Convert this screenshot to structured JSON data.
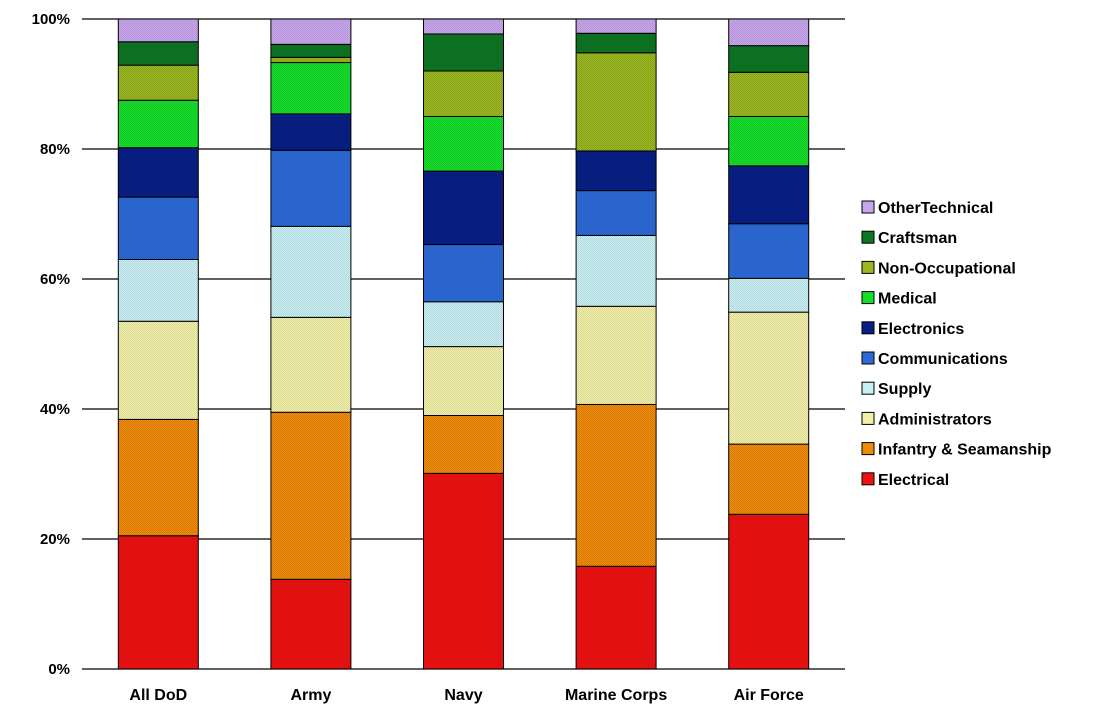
{
  "chart_data": {
    "type": "bar",
    "stacked": true,
    "percent_stacked": true,
    "categories": [
      "All DoD",
      "Army",
      "Navy",
      "Marine Corps",
      "Air Force"
    ],
    "ylim": [
      0,
      100
    ],
    "yticks": [
      "0%",
      "20%",
      "40%",
      "60%",
      "80%",
      "100%"
    ],
    "grid": true,
    "legend_position": "right",
    "series": [
      {
        "name": "Electrical",
        "color": "#ee1111",
        "values": [
          20.5,
          13.8,
          30.1,
          15.8,
          23.8
        ]
      },
      {
        "name": "Infantry & Seamanship",
        "color": "#f08a0a",
        "values": [
          17.9,
          25.7,
          8.9,
          24.9,
          10.8
        ]
      },
      {
        "name": "Administrators",
        "color": "#f2f0a8",
        "values": [
          15.1,
          14.6,
          10.6,
          15.1,
          20.3
        ]
      },
      {
        "name": "Supply",
        "color": "#c8f0f4",
        "values": [
          9.5,
          14.0,
          6.9,
          10.9,
          5.2
        ]
      },
      {
        "name": "Communications",
        "color": "#2d6ad8",
        "values": [
          9.6,
          11.7,
          8.8,
          6.9,
          8.4
        ]
      },
      {
        "name": "Electronics",
        "color": "#081f86",
        "values": [
          7.6,
          5.6,
          11.3,
          6.1,
          8.9
        ]
      },
      {
        "name": "Medical",
        "color": "#16dc2a",
        "values": [
          7.3,
          7.9,
          8.4,
          0.0,
          7.6
        ]
      },
      {
        "name": "Non-Occupational",
        "color": "#9ab620",
        "values": [
          5.4,
          0.8,
          7.0,
          15.1,
          6.8
        ]
      },
      {
        "name": "Craftsman",
        "color": "#0c7622",
        "values": [
          3.6,
          2.0,
          5.7,
          3.0,
          4.1
        ]
      },
      {
        "name": "OtherTechnical",
        "color": "#c8a6ee",
        "values": [
          3.5,
          3.9,
          2.3,
          2.2,
          4.1
        ]
      }
    ],
    "legend_order": [
      "OtherTechnical",
      "Craftsman",
      "Non-Occupational",
      "Medical",
      "Electronics",
      "Communications",
      "Supply",
      "Administrators",
      "Infantry & Seamanship",
      "Electrical"
    ]
  }
}
